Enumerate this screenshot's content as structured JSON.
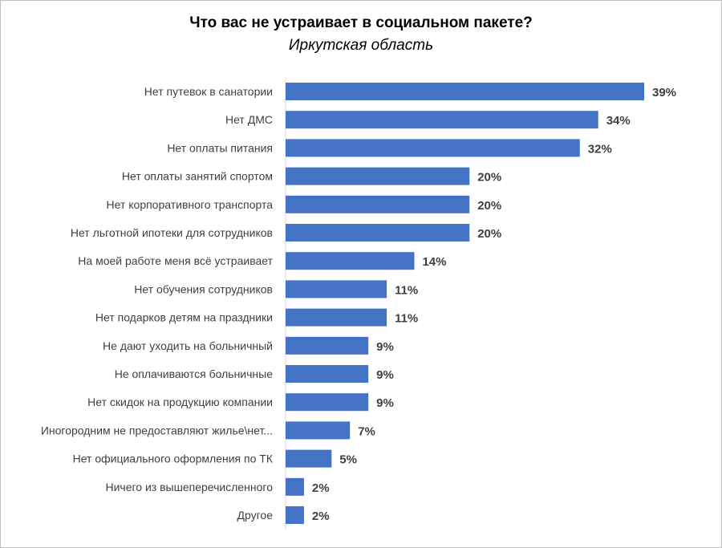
{
  "chart_data": {
    "type": "bar",
    "orientation": "horizontal",
    "title": "Что вас не устраивает в социальном пакете?",
    "subtitle": "Иркутская область",
    "categories": [
      "Нет путевок в санатории",
      "Нет ДМС",
      "Нет оплаты питания",
      "Нет оплаты занятий спортом",
      "Нет корпоративного транспорта",
      "Нет льготной ипотеки для сотрудников",
      "На моей работе меня всё устраивает",
      "Нет обучения сотрудников",
      "Нет подарков детям на праздники",
      "Не дают уходить на больничный",
      "Не оплачиваются больничные",
      "Нет скидок на продукцию компании",
      "Иногородним не предоставляют жилье\\нет...",
      "Нет официального оформления по ТК",
      "Ничего из вышеперечисленного",
      "Другое"
    ],
    "values": [
      39,
      34,
      32,
      20,
      20,
      20,
      14,
      11,
      11,
      9,
      9,
      9,
      7,
      5,
      2,
      2
    ],
    "value_labels": [
      "39%",
      "34%",
      "32%",
      "20%",
      "20%",
      "20%",
      "14%",
      "11%",
      "11%",
      "9%",
      "9%",
      "9%",
      "7%",
      "5%",
      "2%",
      "2%"
    ],
    "unit": "%",
    "bar_color": "#4472c4",
    "grid": false,
    "legend": "none"
  }
}
